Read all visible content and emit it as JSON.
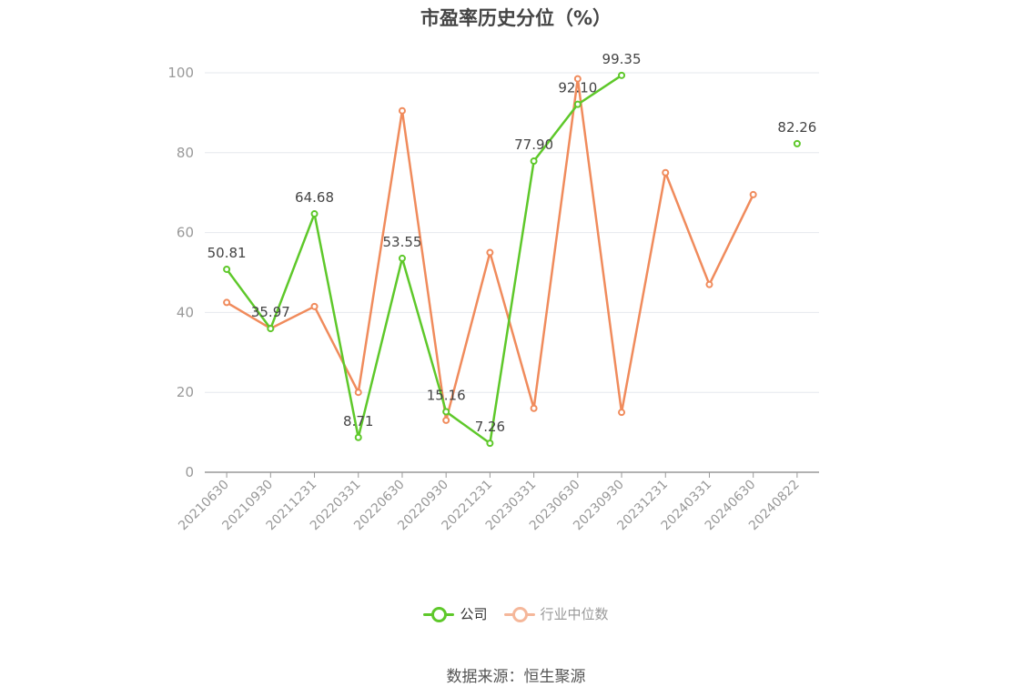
{
  "colors": {
    "company": "#5ec82a",
    "industry": "#f08b5c",
    "industry_legend": "#f5b79a",
    "axis_text": "#999999",
    "grid": "#e6e8ee",
    "axis_line": "#999999",
    "label_text": "#444444"
  },
  "chart_data": {
    "type": "line",
    "title": "市盈率历史分位（%）",
    "categories": [
      "20210630",
      "20210930",
      "20211231",
      "20220331",
      "20220630",
      "20220930",
      "20221231",
      "20230331",
      "20230630",
      "20230930",
      "20231231",
      "20240331",
      "20240630",
      "20240822"
    ],
    "ylim": [
      0,
      100
    ],
    "yticks": [
      0,
      20,
      40,
      60,
      80,
      100
    ],
    "grid": true,
    "legend_position": "bottom",
    "series": [
      {
        "name": "公司",
        "values": [
          50.81,
          35.97,
          64.68,
          8.71,
          53.55,
          15.16,
          7.26,
          77.9,
          92.1,
          99.35,
          null,
          null,
          null,
          82.26
        ],
        "labels": [
          "50.81",
          "35.97",
          "64.68",
          "8.71",
          "53.55",
          "15.16",
          "7.26",
          "77.90",
          "92.10",
          "99.35",
          null,
          null,
          null,
          "82.26"
        ]
      },
      {
        "name": "行业中位数",
        "values": [
          42.5,
          36.0,
          41.5,
          20.0,
          90.5,
          13.0,
          55.0,
          16.0,
          98.5,
          15.0,
          75.0,
          47.0,
          69.5,
          null
        ]
      }
    ]
  },
  "legend": {
    "company_label": "公司",
    "industry_label": "行业中位数"
  },
  "source": "数据来源：恒生聚源"
}
